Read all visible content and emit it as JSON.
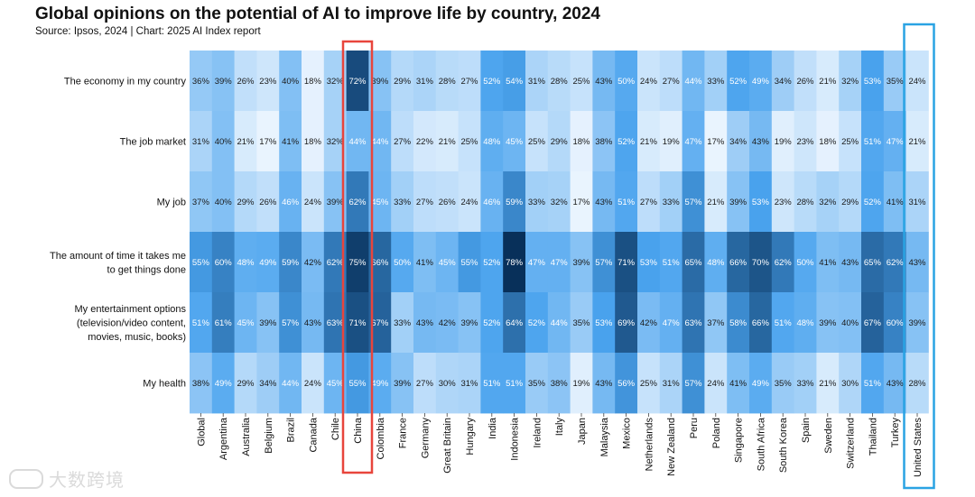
{
  "chart_data": {
    "type": "heatmap",
    "title": "Global opinions on the potential of AI to improve life by country, 2024",
    "subtitle": "Source: Ipsos, 2024 | Chart: 2025 AI Index report",
    "rows": [
      [
        "The economy in my country"
      ],
      [
        "The job market"
      ],
      [
        "My job"
      ],
      [
        "The amount of time it takes me",
        "to get things done"
      ],
      [
        "My entertainment options",
        "(television/video content,",
        "movies, music, books)"
      ],
      [
        "My health"
      ]
    ],
    "columns": [
      "Global",
      "Argentina",
      "Australia",
      "Belgium",
      "Brazil",
      "Canada",
      "Chile",
      "China",
      "Colombia",
      "France",
      "Germany",
      "Great Britain",
      "Hungary",
      "India",
      "Indonesia",
      "Ireland",
      "Italy",
      "Japan",
      "Malaysia",
      "Mexico",
      "Netherlands",
      "New Zealand",
      "Peru",
      "Poland",
      "Singapore",
      "South Africa",
      "South Korea",
      "Spain",
      "Sweden",
      "Switzerland",
      "Thailand",
      "Turkey",
      "United States"
    ],
    "values": [
      [
        36,
        39,
        26,
        23,
        40,
        18,
        32,
        72,
        39,
        29,
        31,
        28,
        27,
        52,
        54,
        31,
        28,
        25,
        43,
        50,
        24,
        27,
        44,
        33,
        52,
        49,
        34,
        26,
        21,
        32,
        53,
        35,
        24
      ],
      [
        31,
        40,
        21,
        17,
        41,
        18,
        32,
        44,
        44,
        27,
        22,
        21,
        25,
        48,
        45,
        25,
        29,
        18,
        38,
        52,
        21,
        19,
        47,
        17,
        34,
        43,
        19,
        23,
        18,
        25,
        51,
        47,
        21
      ],
      [
        37,
        40,
        29,
        26,
        46,
        24,
        39,
        62,
        45,
        33,
        27,
        26,
        24,
        46,
        59,
        33,
        32,
        17,
        43,
        51,
        27,
        33,
        57,
        21,
        39,
        53,
        23,
        28,
        32,
        29,
        52,
        41,
        31
      ],
      [
        55,
        60,
        48,
        49,
        59,
        42,
        62,
        75,
        66,
        50,
        41,
        45,
        55,
        52,
        78,
        47,
        47,
        39,
        57,
        71,
        53,
        51,
        65,
        48,
        66,
        70,
        62,
        50,
        41,
        43,
        65,
        62,
        43
      ],
      [
        51,
        61,
        45,
        39,
        57,
        43,
        63,
        71,
        67,
        33,
        43,
        42,
        39,
        52,
        64,
        52,
        44,
        35,
        53,
        69,
        42,
        47,
        63,
        37,
        58,
        66,
        51,
        48,
        39,
        40,
        67,
        60,
        39
      ],
      [
        38,
        49,
        29,
        34,
        44,
        24,
        45,
        55,
        49,
        39,
        27,
        30,
        31,
        51,
        51,
        35,
        38,
        19,
        43,
        56,
        25,
        31,
        57,
        24,
        41,
        49,
        35,
        33,
        21,
        30,
        51,
        43,
        28
      ]
    ],
    "value_suffix": "%",
    "highlighted_columns": [
      {
        "name": "China",
        "color": "#e8453c"
      },
      {
        "name": "United States",
        "color": "#2aa3e3"
      }
    ],
    "color_scale": {
      "low": "#f2f8ff",
      "high": "#08305a",
      "mid": "#4aa3ee"
    }
  },
  "watermark": "大数跨境"
}
